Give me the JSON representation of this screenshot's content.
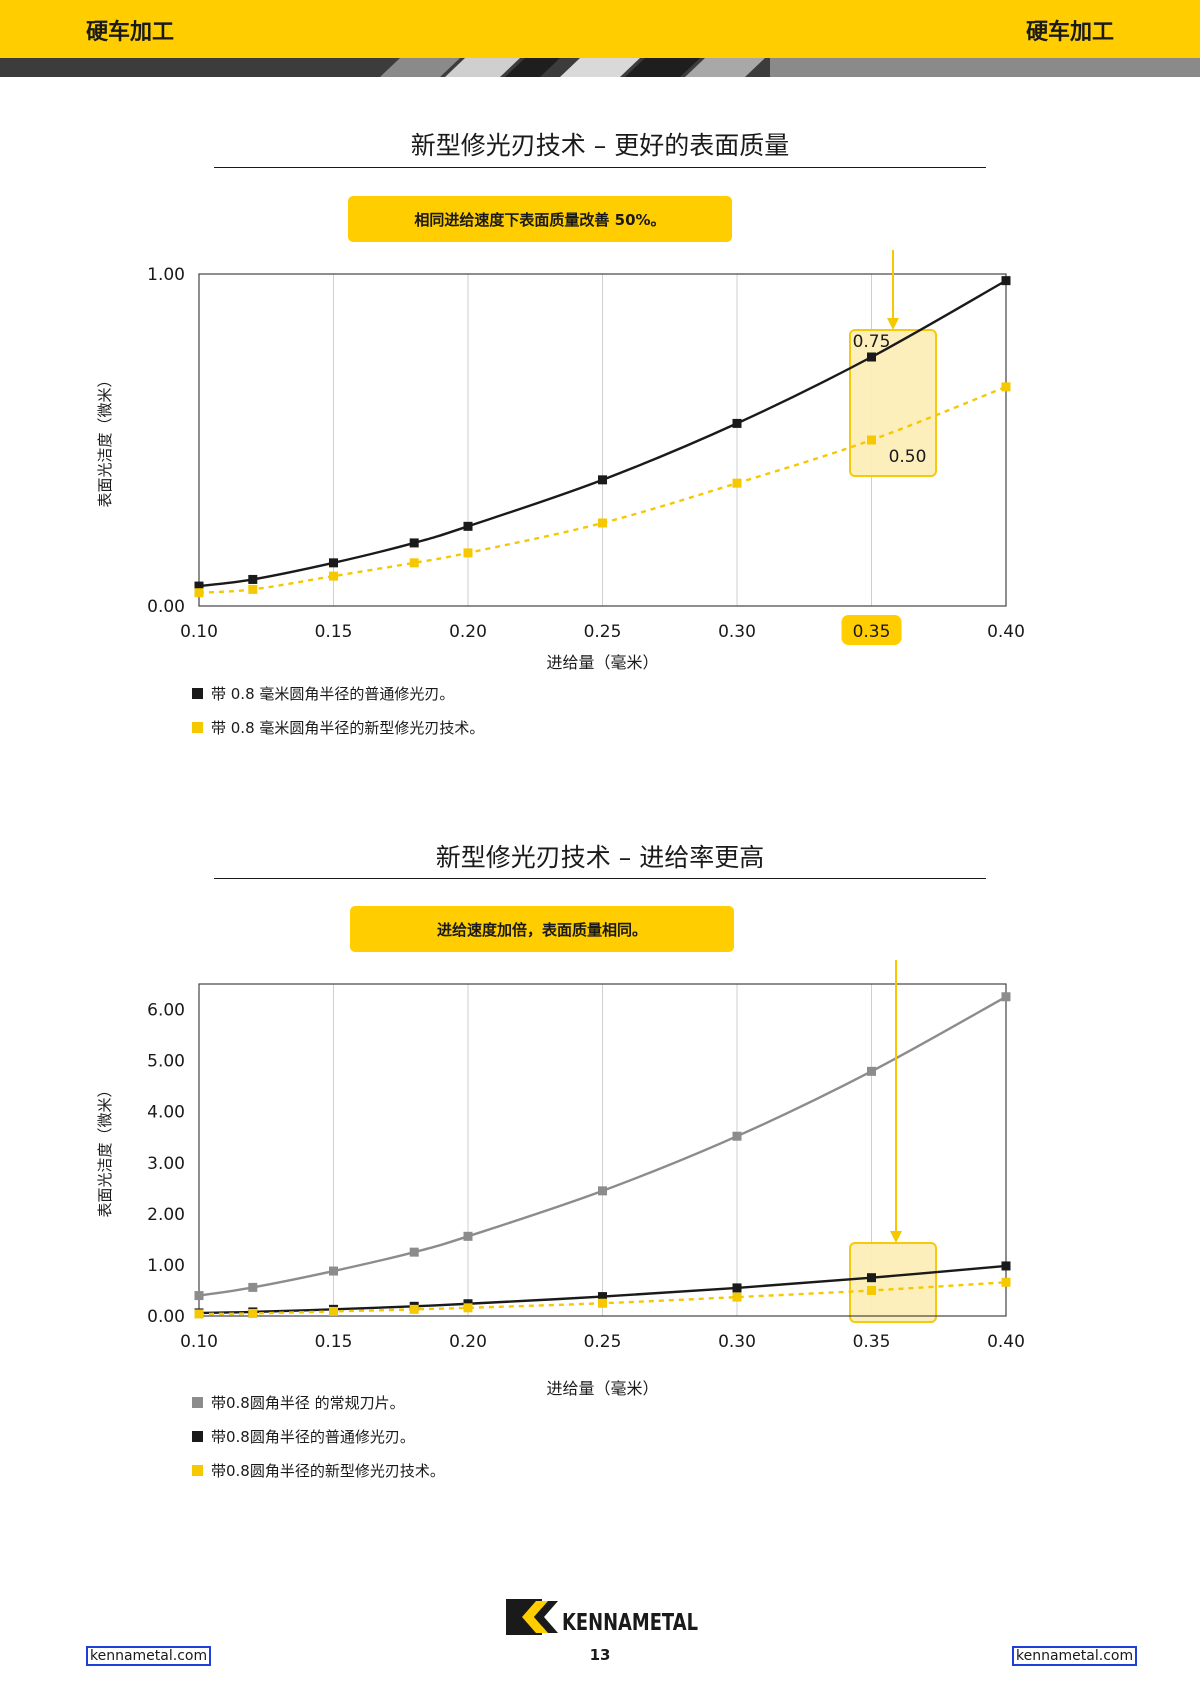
{
  "header": {
    "left": "硬车加工",
    "right": "硬车加工"
  },
  "chart_data": [
    {
      "type": "line",
      "title": "新型修光刃技术 – 更好的表面质量",
      "callout": "相同进给速度下表面质量改善 50%。",
      "xlabel": "进给量（毫米）",
      "ylabel": "表面光洁度（微米）",
      "xlim": [
        0.1,
        0.4
      ],
      "ylim": [
        0.0,
        1.0
      ],
      "x_ticks": [
        "0.10",
        "0.15",
        "0.20",
        "0.25",
        "0.30",
        "0.35",
        "0.40"
      ],
      "y_ticks": [
        "0.00",
        "1.00"
      ],
      "highlighted_tick": "0.35",
      "grid": "vertical",
      "series": [
        {
          "name": "带 0.8 毫米圆角半径的普通修光刃。",
          "color": "#1a1a1a",
          "style": "solid",
          "points": [
            [
              0.1,
              0.06
            ],
            [
              0.12,
              0.08
            ],
            [
              0.15,
              0.13
            ],
            [
              0.18,
              0.19
            ],
            [
              0.2,
              0.24
            ],
            [
              0.25,
              0.38
            ],
            [
              0.3,
              0.55
            ],
            [
              0.35,
              0.75
            ],
            [
              0.4,
              0.98
            ]
          ]
        },
        {
          "name": "带 0.8 毫米圆角半径的新型修光刃技术。",
          "color": "#f5c800",
          "style": "dashed",
          "points": [
            [
              0.1,
              0.04
            ],
            [
              0.12,
              0.05
            ],
            [
              0.15,
              0.09
            ],
            [
              0.18,
              0.13
            ],
            [
              0.2,
              0.16
            ],
            [
              0.25,
              0.25
            ],
            [
              0.3,
              0.37
            ],
            [
              0.35,
              0.5
            ],
            [
              0.4,
              0.66
            ]
          ]
        }
      ],
      "annotations": [
        {
          "x": 0.35,
          "y": 0.75,
          "label": "0.75"
        },
        {
          "x": 0.35,
          "y": 0.5,
          "label": "0.50"
        }
      ]
    },
    {
      "type": "line",
      "title": "新型修光刃技术 – 进给率更高",
      "callout": "进给速度加倍，表面质量相同。",
      "xlabel": "进给量（毫米）",
      "ylabel": "表面光洁度（微米）",
      "xlim": [
        0.1,
        0.4
      ],
      "ylim": [
        0.0,
        6.5
      ],
      "x_ticks": [
        "0.10",
        "0.15",
        "0.20",
        "0.25",
        "0.30",
        "0.35",
        "0.40"
      ],
      "y_ticks": [
        "0.00",
        "1.00",
        "2.00",
        "3.00",
        "4.00",
        "5.00",
        "6.00"
      ],
      "grid": "vertical",
      "series": [
        {
          "name": "带0.8圆角半径 的常规刀片。",
          "color": "#8c8c8c",
          "style": "solid",
          "points": [
            [
              0.1,
              0.4
            ],
            [
              0.12,
              0.56
            ],
            [
              0.15,
              0.88
            ],
            [
              0.18,
              1.25
            ],
            [
              0.2,
              1.56
            ],
            [
              0.25,
              2.45
            ],
            [
              0.3,
              3.52
            ],
            [
              0.35,
              4.79
            ],
            [
              0.4,
              6.25
            ]
          ]
        },
        {
          "name": "带0.8圆角半径的普通修光刃。",
          "color": "#1a1a1a",
          "style": "solid",
          "points": [
            [
              0.1,
              0.06
            ],
            [
              0.12,
              0.08
            ],
            [
              0.15,
              0.13
            ],
            [
              0.18,
              0.19
            ],
            [
              0.2,
              0.24
            ],
            [
              0.25,
              0.38
            ],
            [
              0.3,
              0.55
            ],
            [
              0.35,
              0.75
            ],
            [
              0.4,
              0.98
            ]
          ]
        },
        {
          "name": "带0.8圆角半径的新型修光刃技术。",
          "color": "#f5c800",
          "style": "dashed",
          "points": [
            [
              0.1,
              0.04
            ],
            [
              0.12,
              0.05
            ],
            [
              0.15,
              0.09
            ],
            [
              0.18,
              0.13
            ],
            [
              0.2,
              0.16
            ],
            [
              0.25,
              0.25
            ],
            [
              0.3,
              0.37
            ],
            [
              0.35,
              0.5
            ],
            [
              0.4,
              0.66
            ]
          ]
        }
      ]
    }
  ],
  "footer": {
    "left_link": "kennametal.com",
    "page_number": "13",
    "right_link": "kennametal.com",
    "logo": "KENNAMETAL"
  }
}
